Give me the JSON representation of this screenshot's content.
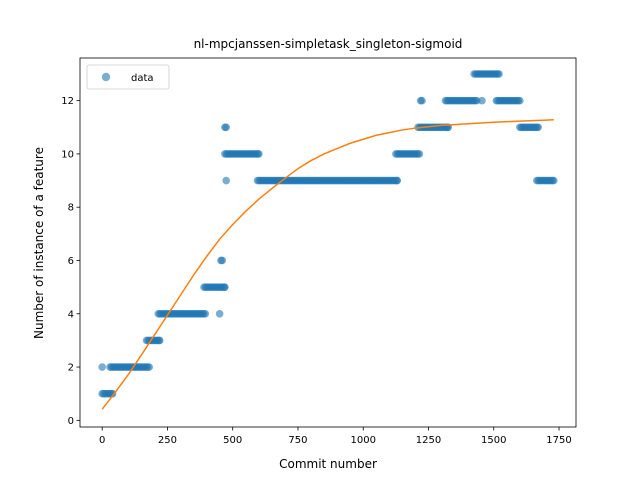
{
  "chart_data": {
    "type": "scatter",
    "title": "nl-mpcjanssen-simpletask_singleton-sigmoid",
    "xlabel": "Commit number",
    "ylabel": "Number of instance of a feature",
    "xlim": [
      -85,
      1815
    ],
    "ylim": [
      -0.25,
      13.6
    ],
    "xticks": [
      0,
      250,
      500,
      750,
      1000,
      1250,
      1500,
      1750
    ],
    "yticks": [
      0,
      2,
      4,
      6,
      8,
      10,
      12
    ],
    "legend": {
      "placement": "upper-left",
      "entries": [
        "data"
      ]
    },
    "colors": {
      "data": "#1f77b4",
      "fit": "#ff7f0e"
    },
    "series": [
      {
        "name": "data",
        "kind": "scatter",
        "runs": [
          {
            "x_start": 0,
            "x_end": 0,
            "y": 2
          },
          {
            "x_start": 0,
            "x_end": 40,
            "y": 1
          },
          {
            "x_start": 30,
            "x_end": 180,
            "y": 2
          },
          {
            "x_start": 170,
            "x_end": 220,
            "y": 3
          },
          {
            "x_start": 215,
            "x_end": 395,
            "y": 4
          },
          {
            "x_start": 390,
            "x_end": 470,
            "y": 5
          },
          {
            "x_start": 450,
            "x_end": 450,
            "y": 4
          },
          {
            "x_start": 455,
            "x_end": 460,
            "y": 6
          },
          {
            "x_start": 470,
            "x_end": 600,
            "y": 10
          },
          {
            "x_start": 470,
            "x_end": 475,
            "y": 11
          },
          {
            "x_start": 475,
            "x_end": 475,
            "y": 9
          },
          {
            "x_start": 595,
            "x_end": 1130,
            "y": 9
          },
          {
            "x_start": 1125,
            "x_end": 1215,
            "y": 10
          },
          {
            "x_start": 1210,
            "x_end": 1325,
            "y": 11
          },
          {
            "x_start": 1220,
            "x_end": 1225,
            "y": 12
          },
          {
            "x_start": 1315,
            "x_end": 1435,
            "y": 12
          },
          {
            "x_start": 1425,
            "x_end": 1520,
            "y": 13
          },
          {
            "x_start": 1455,
            "x_end": 1455,
            "y": 12
          },
          {
            "x_start": 1510,
            "x_end": 1600,
            "y": 12
          },
          {
            "x_start": 1600,
            "x_end": 1670,
            "y": 11
          },
          {
            "x_start": 1665,
            "x_end": 1730,
            "y": 9
          }
        ]
      },
      {
        "name": "",
        "kind": "line",
        "x": [
          0,
          50,
          100,
          150,
          200,
          250,
          300,
          350,
          400,
          450,
          500,
          550,
          600,
          650,
          700,
          750,
          800,
          850,
          900,
          950,
          1000,
          1050,
          1100,
          1150,
          1200,
          1250,
          1300,
          1350,
          1400,
          1450,
          1500,
          1550,
          1600,
          1650,
          1700,
          1730
        ],
        "y": [
          0.42,
          1.05,
          1.72,
          2.45,
          3.2,
          3.95,
          4.7,
          5.45,
          6.15,
          6.8,
          7.35,
          7.85,
          8.3,
          8.7,
          9.08,
          9.45,
          9.75,
          10.0,
          10.2,
          10.4,
          10.55,
          10.7,
          10.8,
          10.9,
          10.97,
          11.02,
          11.07,
          11.1,
          11.13,
          11.16,
          11.19,
          11.21,
          11.23,
          11.25,
          11.27,
          11.28
        ]
      }
    ]
  }
}
